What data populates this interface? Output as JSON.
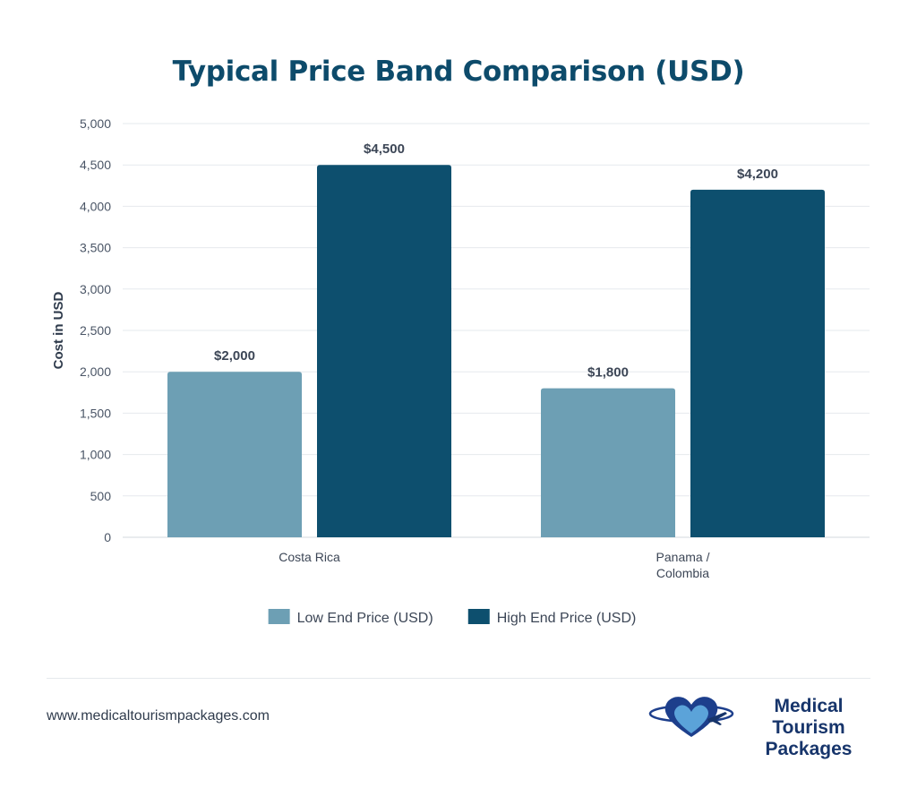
{
  "chart_data": {
    "type": "bar",
    "title": "Typical Price Band Comparison (USD)",
    "ylabel": "Cost in USD",
    "xlabel": "",
    "ylim": [
      0,
      5000
    ],
    "yticks": [
      "0",
      "500",
      "1,000",
      "1,500",
      "2,000",
      "2,500",
      "3,000",
      "3,500",
      "4,000",
      "4,500",
      "5,000"
    ],
    "categories": [
      [
        "Costa Rica"
      ],
      [
        "Panama /",
        "Colombia"
      ]
    ],
    "series": [
      {
        "name": "Low End Price (USD)",
        "values": [
          2000,
          1800
        ],
        "labels": [
          "$2,000",
          "$1,800"
        ],
        "color": "#6d9fb4"
      },
      {
        "name": "High End Price (USD)",
        "values": [
          4500,
          4200
        ],
        "labels": [
          "$4,500",
          "$4,200"
        ],
        "color": "#0d4f6e"
      }
    ],
    "grid": true,
    "legend": "bottom-center"
  },
  "footer": {
    "url": "www.medicaltourismpackages.com",
    "logo_line1": "Medical Tourism",
    "logo_line2": "Packages"
  },
  "colors": {
    "title": "#0d4b6b",
    "grid": "#e6e9ed",
    "logo_text": "#17356b",
    "heart_dark": "#1d3f8c",
    "heart_light": "#5ba3d9"
  }
}
